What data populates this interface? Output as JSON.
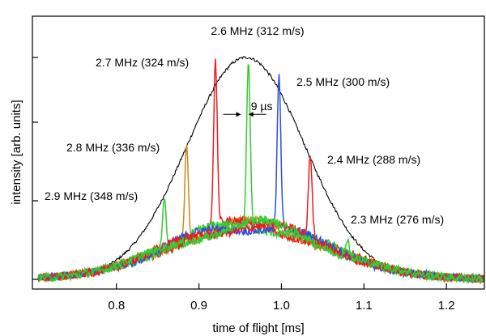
{
  "chart_data": {
    "type": "line",
    "xlabel": "time of flight [ms]",
    "ylabel": "intensity [arb. units]",
    "xlim": [
      0.705,
      1.245
    ],
    "ylim": [
      0.0,
      1.0
    ],
    "x_ticks": [
      0.8,
      0.9,
      1.0,
      1.1,
      1.2
    ],
    "x_tick_labels": [
      "0.8",
      "0.9",
      "1.0",
      "1.1",
      "1.2"
    ],
    "y_ticks": [
      0.0,
      0.338,
      0.676,
      0.955
    ],
    "y_tick_labels": [
      "",
      "",
      "",
      ""
    ],
    "grid": false,
    "envelope": {
      "color": "#000000",
      "center": 0.957,
      "sigma": 0.071,
      "amplitude": 0.955,
      "baseline": 0.0
    },
    "background": {
      "center": 0.96,
      "sigma": 0.095,
      "amplitude": 0.26,
      "baseline": 0.0
    },
    "series": [
      {
        "label": "2.9 MHz (348 m/s)",
        "peak_x": 0.858,
        "peak_y": 0.36,
        "color": "#33cc33"
      },
      {
        "label": "2.8 MHz (336 m/s)",
        "peak_x": 0.885,
        "peak_y": 0.605,
        "color": "#c88a1e"
      },
      {
        "label": "2.7 MHz (324 m/s)",
        "peak_x": 0.92,
        "peak_y": 0.935,
        "color": "#ee1c1c"
      },
      {
        "label": "2.6 MHz (312 m/s)",
        "peak_x": 0.96,
        "peak_y": 0.965,
        "color": "#33cc33"
      },
      {
        "label": "2.5 MHz (300 m/s)",
        "peak_x": 0.997,
        "peak_y": 0.91,
        "color": "#2b4fe0"
      },
      {
        "label": "2.4 MHz (288 m/s)",
        "peak_x": 1.035,
        "peak_y": 0.545,
        "color": "#ee1c1c"
      },
      {
        "label": "2.3 MHz (276 m/s)",
        "peak_x": 1.08,
        "peak_y": 0.2,
        "color": "#33cc33"
      }
    ],
    "annotations": [
      {
        "text": "9 µs",
        "x_from": 0.951,
        "x_to": 0.96,
        "y": 0.71
      }
    ]
  }
}
